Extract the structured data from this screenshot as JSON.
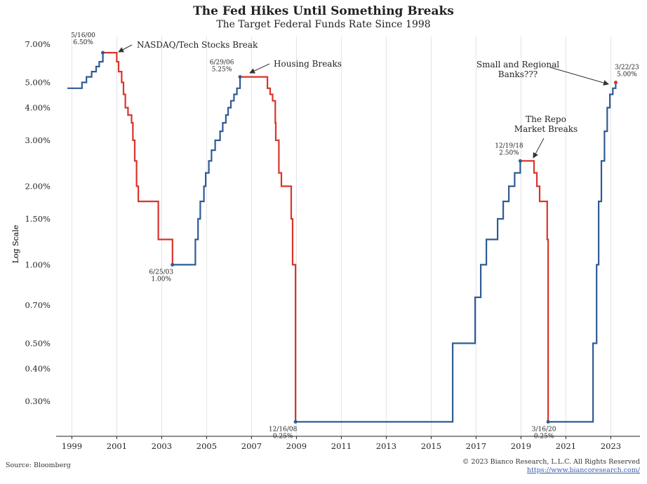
{
  "header": {
    "title": "The Fed Hikes Until Something Breaks",
    "subtitle": "The Target Federal Funds Rate Since 1998"
  },
  "footer": {
    "source": "Source: Bloomberg",
    "copyright": "© 2023 Bianco Research, L.L.C. All Rights Reserved",
    "link": "https://www.biancoresearch.com/"
  },
  "colors": {
    "hike": "#2f5b94",
    "cut": "#d9342b",
    "grid": "#e4e4e4",
    "axis": "#222222"
  },
  "chart_data": {
    "type": "line",
    "ylabel": "Log Scale",
    "yscale": "log",
    "ylim": [
      0.22,
      7.5
    ],
    "xlim": [
      1998.3,
      2024.3
    ],
    "grid": "vertical",
    "yticks": [
      7.0,
      5.0,
      4.0,
      3.0,
      2.0,
      1.5,
      1.0,
      0.7,
      0.5,
      0.4,
      0.3
    ],
    "ytick_labels": [
      "7.00%",
      "5.00%",
      "4.00%",
      "3.00%",
      "2.00%",
      "1.50%",
      "1.00%",
      "0.70%",
      "0.50%",
      "0.40%",
      "0.30%"
    ],
    "xticks": [
      1999,
      2001,
      2003,
      2005,
      2007,
      2009,
      2011,
      2013,
      2015,
      2017,
      2019,
      2021,
      2023
    ],
    "xtick_labels": [
      "1999",
      "2001",
      "2003",
      "2005",
      "2007",
      "2009",
      "2011",
      "2013",
      "2015",
      "2017",
      "2019",
      "2021",
      "2023"
    ],
    "series": [
      {
        "color": "hike",
        "points": [
          [
            1998.8,
            4.75
          ],
          [
            1999.45,
            4.75
          ],
          [
            1999.45,
            5.0
          ],
          [
            1999.65,
            5.0
          ],
          [
            1999.65,
            5.25
          ],
          [
            1999.88,
            5.25
          ],
          [
            1999.88,
            5.5
          ],
          [
            2000.08,
            5.5
          ],
          [
            2000.08,
            5.75
          ],
          [
            2000.22,
            5.75
          ],
          [
            2000.22,
            6.0
          ],
          [
            2000.38,
            6.0
          ],
          [
            2000.38,
            6.5
          ]
        ]
      },
      {
        "color": "cut",
        "points": [
          [
            2000.38,
            6.5
          ],
          [
            2001.0,
            6.5
          ],
          [
            2001.0,
            6.0
          ],
          [
            2001.08,
            6.0
          ],
          [
            2001.08,
            5.5
          ],
          [
            2001.22,
            5.5
          ],
          [
            2001.22,
            5.0
          ],
          [
            2001.3,
            5.0
          ],
          [
            2001.3,
            4.5
          ],
          [
            2001.38,
            4.5
          ],
          [
            2001.38,
            4.0
          ],
          [
            2001.5,
            4.0
          ],
          [
            2001.5,
            3.75
          ],
          [
            2001.66,
            3.75
          ],
          [
            2001.66,
            3.5
          ],
          [
            2001.72,
            3.5
          ],
          [
            2001.72,
            3.0
          ],
          [
            2001.8,
            3.0
          ],
          [
            2001.8,
            2.5
          ],
          [
            2001.88,
            2.5
          ],
          [
            2001.88,
            2.0
          ],
          [
            2001.96,
            2.0
          ],
          [
            2001.96,
            1.75
          ],
          [
            2002.85,
            1.75
          ],
          [
            2002.85,
            1.25
          ],
          [
            2003.48,
            1.25
          ],
          [
            2003.48,
            1.0
          ]
        ]
      },
      {
        "color": "hike",
        "points": [
          [
            2003.48,
            1.0
          ],
          [
            2004.5,
            1.0
          ],
          [
            2004.5,
            1.25
          ],
          [
            2004.62,
            1.25
          ],
          [
            2004.62,
            1.5
          ],
          [
            2004.72,
            1.5
          ],
          [
            2004.72,
            1.75
          ],
          [
            2004.88,
            1.75
          ],
          [
            2004.88,
            2.0
          ],
          [
            2004.96,
            2.0
          ],
          [
            2004.96,
            2.25
          ],
          [
            2005.1,
            2.25
          ],
          [
            2005.1,
            2.5
          ],
          [
            2005.22,
            2.5
          ],
          [
            2005.22,
            2.75
          ],
          [
            2005.38,
            2.75
          ],
          [
            2005.38,
            3.0
          ],
          [
            2005.6,
            3.0
          ],
          [
            2005.6,
            3.25
          ],
          [
            2005.72,
            3.25
          ],
          [
            2005.72,
            3.5
          ],
          [
            2005.86,
            3.5
          ],
          [
            2005.86,
            3.75
          ],
          [
            2005.96,
            3.75
          ],
          [
            2005.96,
            4.0
          ],
          [
            2006.08,
            4.0
          ],
          [
            2006.08,
            4.25
          ],
          [
            2006.22,
            4.25
          ],
          [
            2006.22,
            4.5
          ],
          [
            2006.35,
            4.5
          ],
          [
            2006.35,
            4.75
          ],
          [
            2006.49,
            4.75
          ],
          [
            2006.49,
            5.0
          ],
          [
            2006.49,
            5.25
          ]
        ]
      },
      {
        "color": "cut",
        "points": [
          [
            2006.49,
            5.25
          ],
          [
            2007.71,
            5.25
          ],
          [
            2007.71,
            4.75
          ],
          [
            2007.83,
            4.75
          ],
          [
            2007.83,
            4.5
          ],
          [
            2007.94,
            4.5
          ],
          [
            2007.94,
            4.25
          ],
          [
            2008.06,
            4.25
          ],
          [
            2008.06,
            3.5
          ],
          [
            2008.08,
            3.5
          ],
          [
            2008.08,
            3.0
          ],
          [
            2008.22,
            3.0
          ],
          [
            2008.22,
            2.25
          ],
          [
            2008.33,
            2.25
          ],
          [
            2008.33,
            2.0
          ],
          [
            2008.77,
            2.0
          ],
          [
            2008.77,
            1.5
          ],
          [
            2008.83,
            1.5
          ],
          [
            2008.83,
            1.0
          ],
          [
            2008.96,
            1.0
          ],
          [
            2008.96,
            0.25
          ]
        ]
      },
      {
        "color": "hike",
        "points": [
          [
            2008.96,
            0.25
          ],
          [
            2015.96,
            0.25
          ],
          [
            2015.96,
            0.5
          ],
          [
            2016.96,
            0.5
          ],
          [
            2016.96,
            0.75
          ],
          [
            2017.21,
            0.75
          ],
          [
            2017.21,
            1.0
          ],
          [
            2017.46,
            1.0
          ],
          [
            2017.46,
            1.25
          ],
          [
            2017.96,
            1.25
          ],
          [
            2017.96,
            1.5
          ],
          [
            2018.21,
            1.5
          ],
          [
            2018.21,
            1.75
          ],
          [
            2018.46,
            1.75
          ],
          [
            2018.46,
            2.0
          ],
          [
            2018.72,
            2.0
          ],
          [
            2018.72,
            2.25
          ],
          [
            2018.97,
            2.25
          ],
          [
            2018.97,
            2.5
          ]
        ]
      },
      {
        "color": "cut",
        "points": [
          [
            2018.97,
            2.5
          ],
          [
            2019.58,
            2.5
          ],
          [
            2019.58,
            2.25
          ],
          [
            2019.71,
            2.25
          ],
          [
            2019.71,
            2.0
          ],
          [
            2019.83,
            2.0
          ],
          [
            2019.83,
            1.75
          ],
          [
            2020.17,
            1.75
          ],
          [
            2020.17,
            1.25
          ],
          [
            2020.21,
            1.25
          ],
          [
            2020.21,
            0.25
          ]
        ]
      },
      {
        "color": "hike",
        "points": [
          [
            2020.21,
            0.25
          ],
          [
            2022.21,
            0.25
          ],
          [
            2022.21,
            0.5
          ],
          [
            2022.37,
            0.5
          ],
          [
            2022.37,
            1.0
          ],
          [
            2022.46,
            1.0
          ],
          [
            2022.46,
            1.75
          ],
          [
            2022.58,
            1.75
          ],
          [
            2022.58,
            2.5
          ],
          [
            2022.72,
            2.5
          ],
          [
            2022.72,
            3.25
          ],
          [
            2022.84,
            3.25
          ],
          [
            2022.84,
            4.0
          ],
          [
            2022.96,
            4.0
          ],
          [
            2022.96,
            4.5
          ],
          [
            2023.09,
            4.5
          ],
          [
            2023.09,
            4.75
          ],
          [
            2023.22,
            4.75
          ],
          [
            2023.22,
            5.0
          ]
        ]
      }
    ],
    "annotations": [
      {
        "id": "nasdaq",
        "x": 2000.38,
        "y": 6.5,
        "date": "5/16/00",
        "value": "6.50%",
        "label": "NASDAQ/Tech Stocks Break"
      },
      {
        "id": "housing",
        "x": 2006.49,
        "y": 5.25,
        "date": "6/29/06",
        "value": "5.25%",
        "label": "Housing Breaks"
      },
      {
        "id": "low2003",
        "x": 2003.48,
        "y": 1.0,
        "date": "6/25/03",
        "value": "1.00%"
      },
      {
        "id": "low2008",
        "x": 2008.96,
        "y": 0.25,
        "date": "12/16/08",
        "value": "0.25%"
      },
      {
        "id": "repo",
        "x": 2018.97,
        "y": 2.5,
        "date": "12/19/18",
        "value": "2.50%",
        "label_lines": [
          "The Repo",
          "Market Breaks"
        ]
      },
      {
        "id": "low2020",
        "x": 2020.21,
        "y": 0.25,
        "date": "3/16/20",
        "value": "0.25%"
      },
      {
        "id": "banks",
        "x": 2023.22,
        "y": 5.0,
        "date": "3/22/23",
        "value": "5.00%",
        "label_lines": [
          "Small and Regional",
          "Banks???"
        ]
      }
    ]
  }
}
